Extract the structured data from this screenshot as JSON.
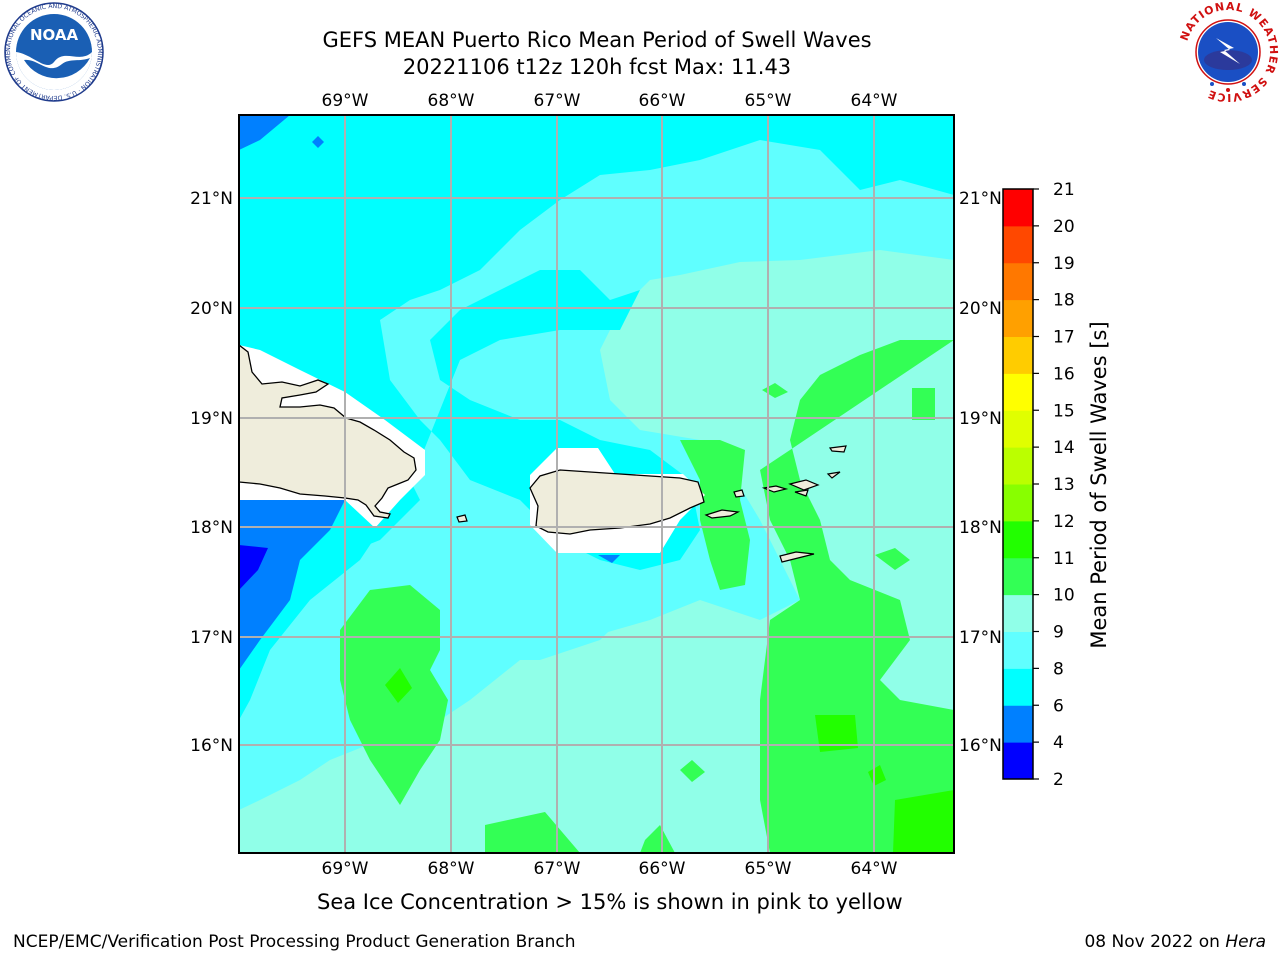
{
  "title": {
    "line1": "GEFS MEAN Puerto Rico Mean Period of Swell Waves",
    "line2": "20221106 t12z 120h fcst   Max: 11.43"
  },
  "map": {
    "lon_ticks_top": [
      "69°W",
      "68°W",
      "67°W",
      "66°W",
      "65°W",
      "64°W"
    ],
    "lon_ticks_bottom": [
      "69°W",
      "68°W",
      "67°W",
      "66°W",
      "65°W",
      "64°W"
    ],
    "lat_ticks_left": [
      "21°N",
      "20°N",
      "19°N",
      "18°N",
      "17°N",
      "16°N"
    ],
    "lat_ticks_right": [
      "21°N",
      "20°N",
      "19°N",
      "18°N",
      "17°N",
      "16°N"
    ],
    "land_color": "#efeddc",
    "grid_color": "#b0b0b0"
  },
  "colorbar": {
    "label": "Mean Period of Swell Waves [s]",
    "ticks": [
      "2",
      "4",
      "6",
      "8",
      "9",
      "10",
      "11",
      "12",
      "13",
      "14",
      "15",
      "16",
      "17",
      "18",
      "19",
      "20",
      "21"
    ],
    "colors": [
      "#0000ff",
      "#0080ff",
      "#00ffff",
      "#60ffff",
      "#90ffe8",
      "#33ff55",
      "#22ff00",
      "#88ff00",
      "#bbff00",
      "#e0ff00",
      "#ffff00",
      "#ffcc00",
      "#ffa000",
      "#ff7800",
      "#ff4800",
      "#ff0000"
    ]
  },
  "subcaption": "Sea Ice Concentration > 15% is shown in pink to yellow",
  "footer": {
    "left": "NCEP/EMC/Verification Post Processing Product Generation Branch",
    "right_prefix": "08 Nov 2022 on",
    "right_host": "Hera"
  },
  "logos": {
    "noaa_text": "NOAA",
    "noaa_ring_text": "NATIONAL OCEANIC AND ATMOSPHERIC ADMINISTRATION · U.S. DEPARTMENT OF COMMERCE",
    "nws_ring_text": "NATIONAL WEATHER SERVICE"
  }
}
